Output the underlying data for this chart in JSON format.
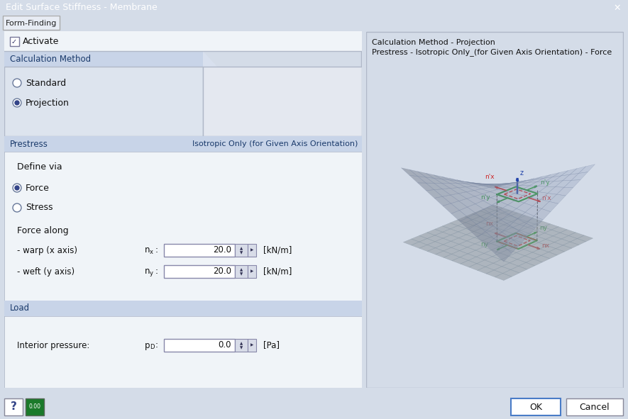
{
  "title_bar": "Edit Surface Stiffness - Membrane",
  "title_bar_bg": "#4a7cc7",
  "title_bar_fg": "#ffffff",
  "tab_text": "Form-Finding",
  "dialog_bg": "#d4dce8",
  "panel_bg": "#ffffff",
  "content_bg": "#f0f4f8",
  "section_header_bg": "#c8d4e8",
  "section_header_fg": "#1a3a6b",
  "activate_text": "Activate",
  "calc_method_header": "Calculation Method",
  "standard_text": "Standard",
  "projection_text": "Projection",
  "prestress_header": "Prestress",
  "prestress_right_text": "Isotropic Only (for Given Axis Orientation)",
  "define_via_text": "Define via",
  "force_text": "Force",
  "stress_text": "Stress",
  "force_along_text": "Force along",
  "warp_label": "- warp (x axis)",
  "warp_value": "20.0",
  "warp_unit": "[kN/m]",
  "weft_label": "- weft (y axis)",
  "weft_value": "20.0",
  "weft_unit": "[kN/m]",
  "load_header": "Load",
  "interior_pressure_label": "Interior pressure:",
  "pressure_value": "0.0",
  "pressure_unit": "[Pa]",
  "ok_text": "OK",
  "cancel_text": "Cancel",
  "info_text1": "Calculation Method - Projection",
  "info_text2": "Prestress - Isotropic Only_(for Given Axis Orientation) - Force",
  "right_panel_bg": "#fdfbe8",
  "membrane_surface_color": "#aab8d4",
  "membrane_grid_color": "#7080a0",
  "flat_surface_color": "#b8c4cc",
  "flat_grid_color": "#8090a0",
  "arrow_red": "#cc2222",
  "arrow_green": "#229933",
  "arrow_blue_dark": "#2244aa"
}
